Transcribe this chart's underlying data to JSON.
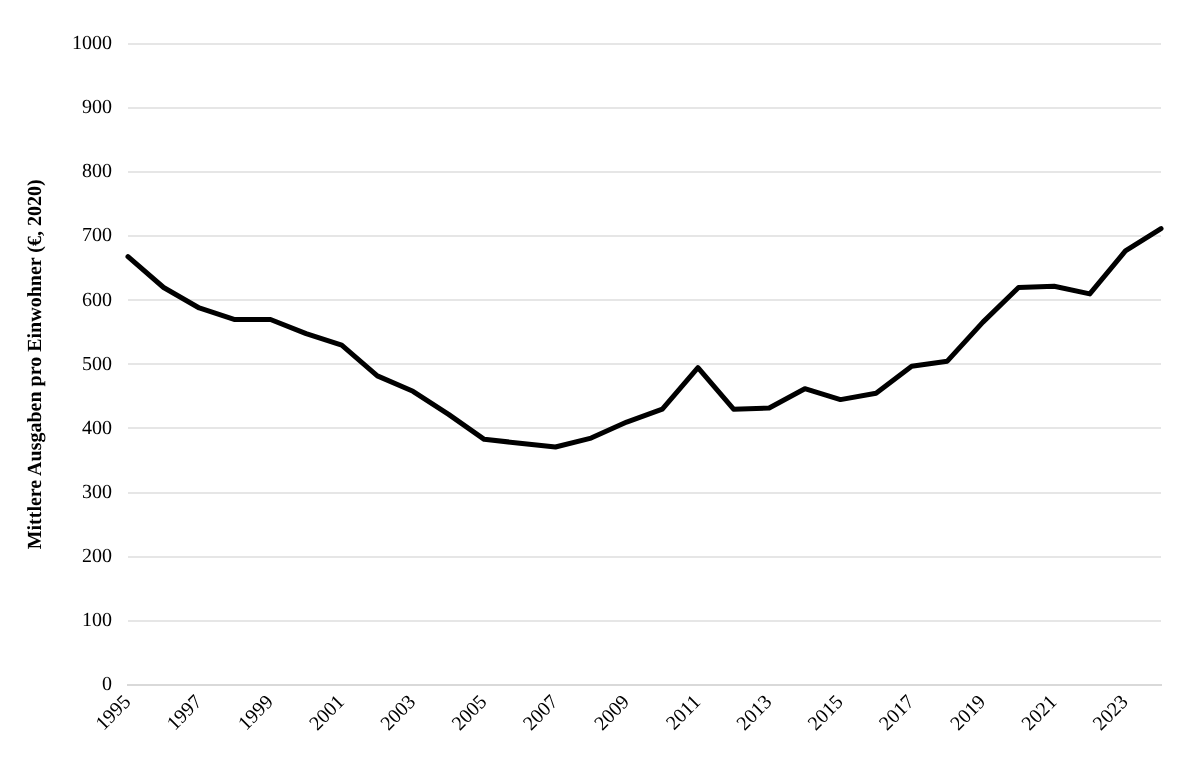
{
  "chart_data": {
    "type": "line",
    "ylabel": "Mittlere Ausgaben pro Einwohner (€, 2020)",
    "categories": [
      "1995",
      null,
      "1997",
      null,
      "1999",
      null,
      "2001",
      null,
      "2003",
      null,
      "2005",
      null,
      "2007",
      null,
      "2009",
      null,
      "2011",
      null,
      "2013",
      null,
      "2015",
      null,
      "2017",
      null,
      "2019",
      null,
      "2021",
      null,
      "2023",
      null
    ],
    "series": [
      {
        "color": "#000000",
        "values": [
          668,
          620,
          588,
          570,
          570,
          548,
          530,
          482,
          458,
          422,
          383,
          377,
          371,
          385,
          410,
          430,
          495,
          430,
          432,
          462,
          445,
          455,
          497,
          505,
          566,
          620,
          622,
          610,
          677,
          712
        ]
      }
    ],
    "ylim": [
      0,
      1000
    ],
    "yticks": [
      0,
      100,
      200,
      300,
      400,
      500,
      600,
      700,
      800,
      900,
      1000
    ],
    "grid": "y",
    "legend": false,
    "marker": "none",
    "line_style": "solid"
  }
}
